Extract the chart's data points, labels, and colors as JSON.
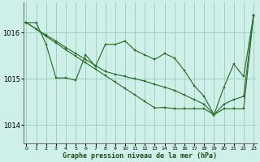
{
  "background_color": "#cff0e8",
  "grid_color": "#99ccbb",
  "line_color": "#2d6e2d",
  "marker_color": "#2d6e2d",
  "xlabel": "Graphe pression niveau de la mer (hPa)",
  "xlabel_color": "#1a4d1a",
  "xticks": [
    0,
    1,
    2,
    3,
    4,
    5,
    6,
    7,
    8,
    9,
    10,
    11,
    12,
    13,
    14,
    15,
    16,
    17,
    18,
    19,
    20,
    21,
    22,
    23
  ],
  "yticks": [
    1014,
    1015,
    1016
  ],
  "ylim": [
    1013.6,
    1016.65
  ],
  "xlim": [
    -0.3,
    23.3
  ],
  "line1": [
    1016.22,
    1016.22,
    1015.75,
    1015.02,
    1015.02,
    1014.97,
    1015.52,
    1015.27,
    1015.75,
    1015.75,
    1015.82,
    1015.62,
    1015.52,
    1015.42,
    1015.55,
    1015.45,
    1015.18,
    1014.85,
    1014.62,
    1014.22,
    1014.82,
    1015.32,
    1015.05,
    1016.38
  ],
  "line2": [
    1016.22,
    1016.08,
    1015.92,
    1015.78,
    1015.63,
    1015.49,
    1015.35,
    1015.21,
    1015.07,
    1014.93,
    1014.79,
    1014.65,
    1014.51,
    1014.37,
    1014.38,
    1014.35,
    1014.35,
    1014.35,
    1014.35,
    1014.22,
    1014.35,
    1014.35,
    1014.35,
    1016.38
  ],
  "line3": [
    1016.22,
    1016.08,
    1015.95,
    1015.82,
    1015.68,
    1015.55,
    1015.42,
    1015.29,
    1015.16,
    1015.1,
    1015.05,
    1015.0,
    1014.95,
    1014.88,
    1014.82,
    1014.75,
    1014.65,
    1014.55,
    1014.45,
    1014.22,
    1014.45,
    1014.55,
    1014.62,
    1016.38
  ]
}
